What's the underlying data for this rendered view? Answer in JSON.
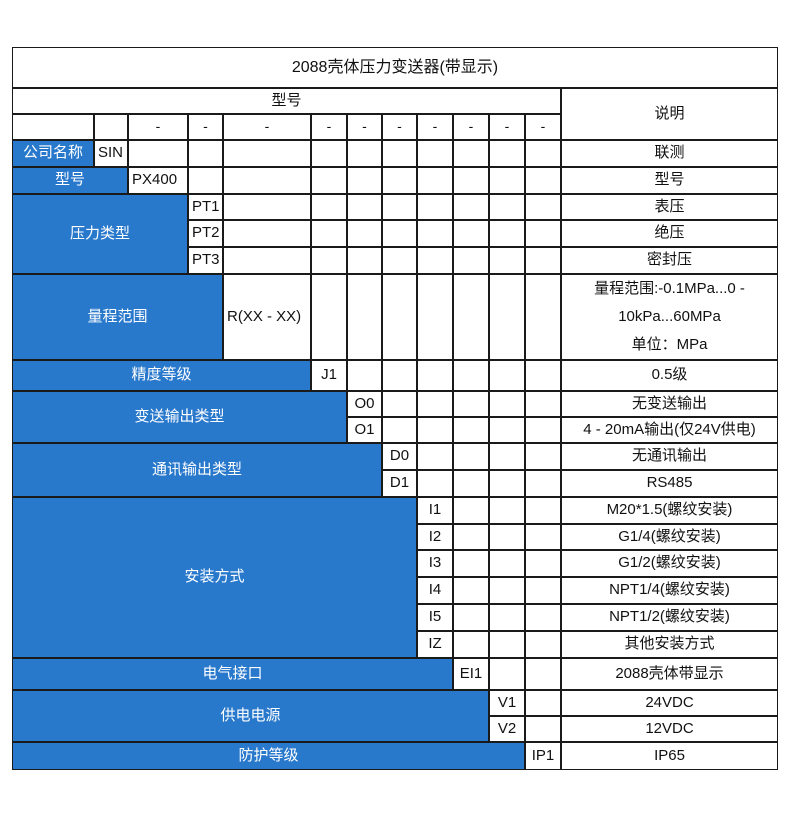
{
  "colors": {
    "accent_blue": "#2878cc",
    "grid_line": "#1a1a1a",
    "text_on_blue": "#ffffff",
    "text": "#111111"
  },
  "table": {
    "title": "2088壳体压力变送器(带显示)",
    "header": {
      "model_label": "型号",
      "desc_label": "说明",
      "dash": "-",
      "dash_first_col": 3,
      "dash_last_col": 12
    },
    "groups": [
      {
        "label": "公司名称",
        "code_col": 2,
        "options": [
          {
            "code": "SIN",
            "desc": "联测"
          }
        ]
      },
      {
        "label": "型号",
        "code_col": 3,
        "options": [
          {
            "code": "PX400",
            "desc": "型号"
          }
        ]
      },
      {
        "label": "压力类型",
        "code_col": 4,
        "options": [
          {
            "code": "PT1",
            "desc": "表压"
          },
          {
            "code": "PT2",
            "desc": "绝压"
          },
          {
            "code": "PT3",
            "desc": "密封压"
          }
        ]
      },
      {
        "label": "量程范围",
        "code_col": 5,
        "options": [
          {
            "code": "R(XX - XX)",
            "desc": "量程范围:-0.1MPa...0 - 10kPa...60MPa 单位：MPa",
            "desc_lines": [
              "量程范围:-0.1MPa...0 -",
              "10kPa...60MPa",
              "单位：MPa"
            ]
          }
        ]
      },
      {
        "label": "精度等级",
        "code_col": 6,
        "options": [
          {
            "code": "J1",
            "desc": "0.5级"
          }
        ]
      },
      {
        "label": "变送输出类型",
        "code_col": 7,
        "options": [
          {
            "code": "O0",
            "desc": "无变送输出"
          },
          {
            "code": "O1",
            "desc": "4 - 20mA输出(仅24V供电)"
          }
        ]
      },
      {
        "label": "通讯输出类型",
        "code_col": 8,
        "options": [
          {
            "code": "D0",
            "desc": "无通讯输出"
          },
          {
            "code": "D1",
            "desc": "RS485"
          }
        ]
      },
      {
        "label": "安装方式",
        "code_col": 9,
        "options": [
          {
            "code": "I1",
            "desc": "M20*1.5(螺纹安装)"
          },
          {
            "code": "I2",
            "desc": "G1/4(螺纹安装)"
          },
          {
            "code": "I3",
            "desc": "G1/2(螺纹安装)"
          },
          {
            "code": "I4",
            "desc": "NPT1/4(螺纹安装)"
          },
          {
            "code": "I5",
            "desc": "NPT1/2(螺纹安装)"
          },
          {
            "code": "IZ",
            "desc": "其他安装方式"
          }
        ]
      },
      {
        "label": "电气接口",
        "code_col": 10,
        "options": [
          {
            "code": "EI1",
            "desc": "2088壳体带显示"
          }
        ]
      },
      {
        "label": "供电电源",
        "code_col": 11,
        "options": [
          {
            "code": "V1",
            "desc": "24VDC"
          },
          {
            "code": "V2",
            "desc": "12VDC"
          }
        ]
      },
      {
        "label": "防护等级",
        "code_col": 12,
        "options": [
          {
            "code": "IP1",
            "desc": "IP65"
          }
        ]
      }
    ]
  }
}
